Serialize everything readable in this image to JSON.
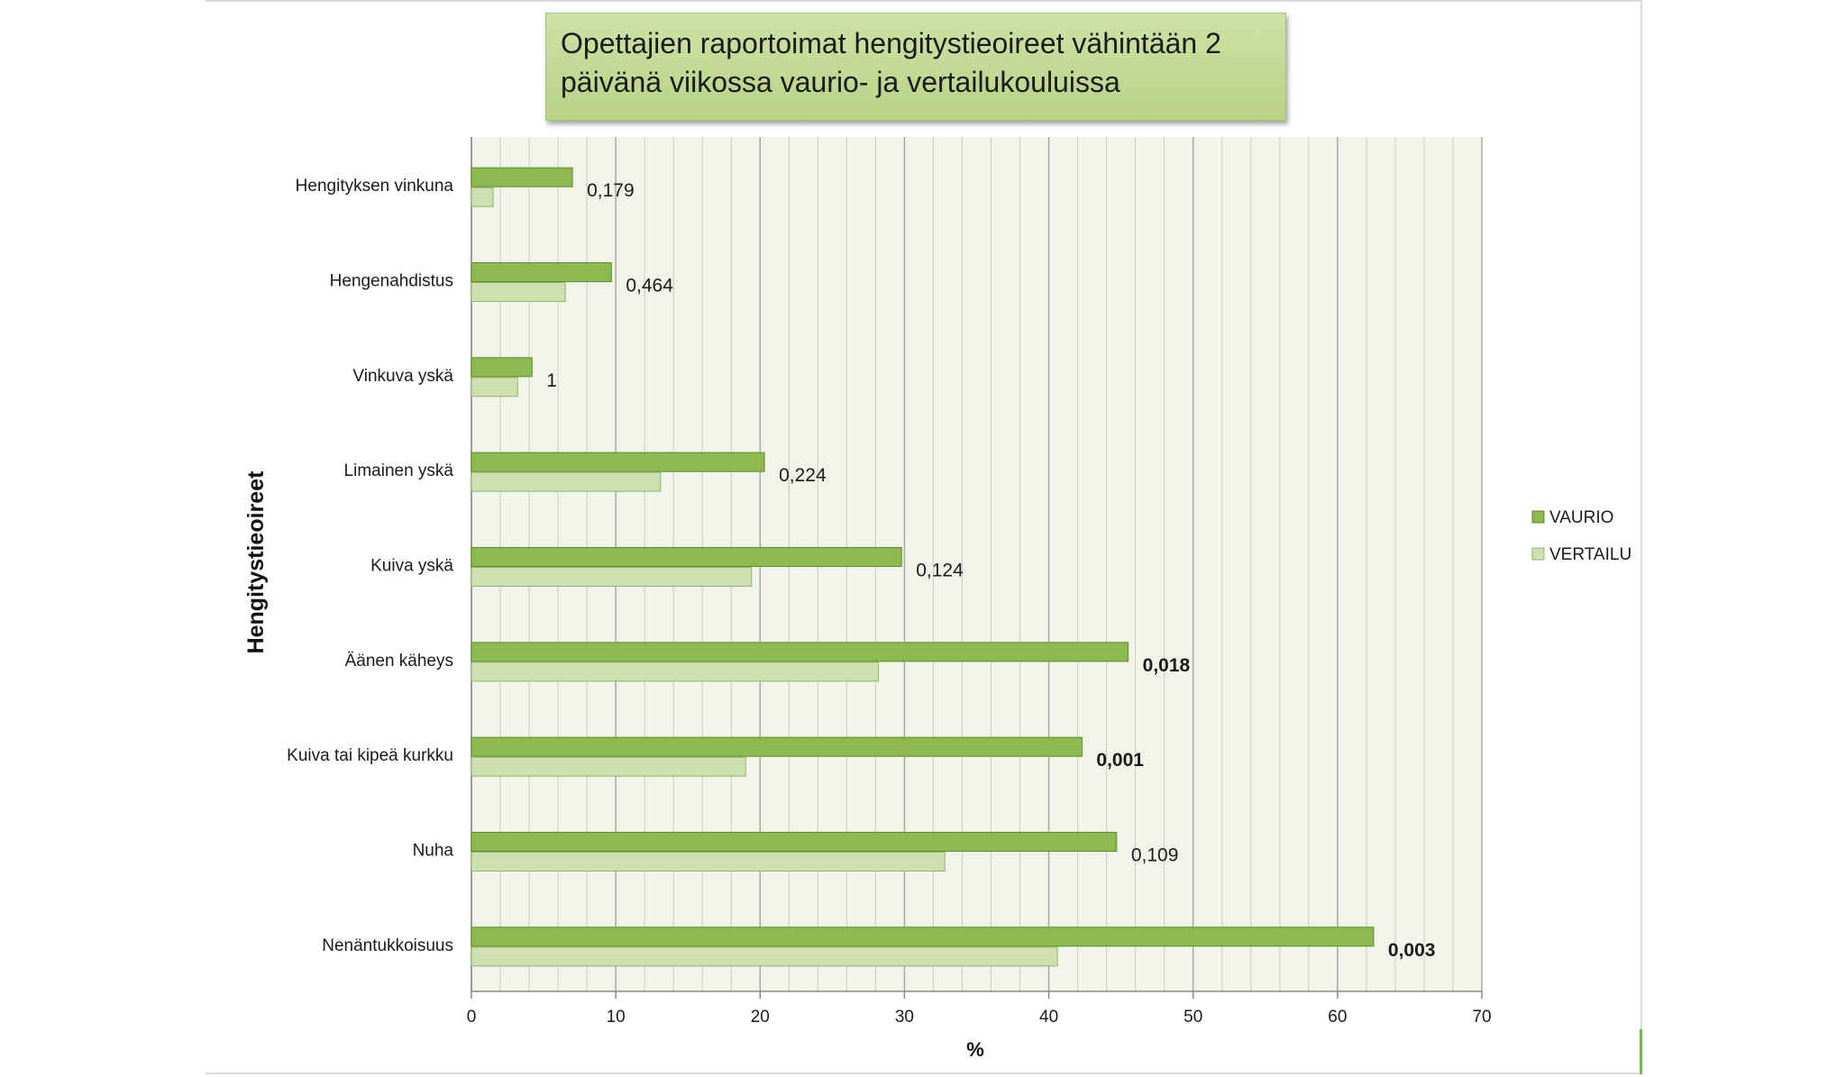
{
  "colors": {
    "vaurio": "#8dba50",
    "vaurio_stroke": "#5e8a2c",
    "vertailu": "#cde0b0",
    "vertailu_stroke": "#93b36a",
    "plot_background": "#f1f4ea",
    "gridline": "#a9a9a9"
  },
  "chart_data": {
    "type": "bar",
    "orientation": "horizontal",
    "title": "Opettajien raportoimat hengitystieoireet vähintään 2 päivänä viikossa vaurio- ja vertailukouluissa",
    "title_lines": [
      "Opettajien raportoimat hengitystieoireet vähintään 2",
      "päivänä viikossa vaurio- ja vertailukouluissa"
    ],
    "ylabel": "Hengitystieoireet",
    "xlabel": "%",
    "xlim": [
      0,
      70
    ],
    "xticks": [
      0,
      10,
      20,
      30,
      40,
      50,
      60,
      70
    ],
    "grid": true,
    "legend_position": "right",
    "categories": [
      "Hengityksen vinkuna",
      "Hengenahdistus",
      "Vinkuva yskä",
      "Limainen yskä",
      "Kuiva yskä",
      "Äänen käheys",
      "Kuiva tai kipeä kurkku",
      "Nuha",
      "Nenäntukkoisuus"
    ],
    "series": [
      {
        "name": "VAURIO",
        "values": [
          7.0,
          9.7,
          4.2,
          20.3,
          29.8,
          45.5,
          42.3,
          44.7,
          62.5
        ]
      },
      {
        "name": "VERTAILU",
        "values": [
          1.5,
          6.5,
          3.2,
          13.1,
          19.4,
          28.2,
          19.0,
          32.8,
          40.6
        ]
      }
    ],
    "annotations": [
      {
        "text": "0,179",
        "bold": false
      },
      {
        "text": "0,464",
        "bold": false
      },
      {
        "text": "1",
        "bold": false
      },
      {
        "text": "0,224",
        "bold": false
      },
      {
        "text": "0,124",
        "bold": false
      },
      {
        "text": "0,018",
        "bold": true
      },
      {
        "text": "0,001",
        "bold": true
      },
      {
        "text": "0,109",
        "bold": false
      },
      {
        "text": "0,003",
        "bold": true
      }
    ]
  }
}
